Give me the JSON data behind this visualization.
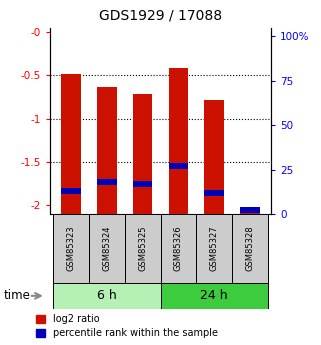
{
  "title": "GDS1929 / 17088",
  "samples": [
    "GSM85323",
    "GSM85324",
    "GSM85325",
    "GSM85326",
    "GSM85327",
    "GSM85328"
  ],
  "log2_ratio": [
    -0.48,
    -0.63,
    -0.72,
    -0.42,
    -0.78,
    -2.02
  ],
  "percentile_rank": [
    13,
    18,
    17,
    27,
    12,
    2
  ],
  "time_groups": [
    {
      "label": "6 h",
      "samples": [
        0,
        1,
        2
      ],
      "color": "#b5f0b5"
    },
    {
      "label": "24 h",
      "samples": [
        3,
        4,
        5
      ],
      "color": "#3dcc3d"
    }
  ],
  "bar_color_red": "#cc1100",
  "bar_color_blue": "#0000bb",
  "bar_width": 0.55,
  "ylim_left": [
    -2.1,
    0.05
  ],
  "ylim_right": [
    0,
    105
  ],
  "yticks_left": [
    0,
    -0.5,
    -1.0,
    -1.5,
    -2.0
  ],
  "yticks_right": [
    0,
    25,
    50,
    75,
    100
  ],
  "ytick_labels_left": [
    "-0",
    "-0.5",
    "-1",
    "-1.5",
    "-2"
  ],
  "ytick_labels_right": [
    "0",
    "25",
    "50",
    "75",
    "100%"
  ],
  "grid_color": "#000000",
  "plot_bg": "#ffffff",
  "legend_labels": [
    "log2 ratio",
    "percentile rank within the sample"
  ],
  "time_label": "time",
  "sample_bg": "#cccccc"
}
